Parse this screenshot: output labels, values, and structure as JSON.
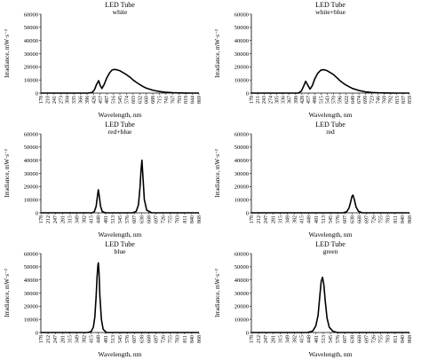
{
  "chart_data": [
    {
      "type": "line",
      "title": "LED Tube",
      "subtitle": "white",
      "xlabel": "Wavelength, nm",
      "ylabel": "Irradiance, mW·s⁻²",
      "ylim": [
        0,
        60000
      ],
      "yticks": [
        0,
        10000,
        20000,
        30000,
        40000,
        50000,
        60000
      ],
      "xticks": [
        "178",
        "210",
        "241",
        "273",
        "304",
        "335",
        "366",
        "396",
        "426",
        "457",
        "487",
        "516",
        "545",
        "574",
        "603",
        "632",
        "660",
        "688",
        "715",
        "741",
        "767",
        "793",
        "819",
        "844",
        "869"
      ],
      "grid": false,
      "legend": "none",
      "x": [
        178,
        400,
        420,
        430,
        440,
        450,
        457,
        465,
        475,
        487,
        500,
        510,
        520,
        530,
        545,
        560,
        574,
        590,
        603,
        615,
        632,
        646,
        660,
        688,
        715,
        741,
        767,
        793,
        819,
        844,
        869
      ],
      "y": [
        0,
        0,
        500,
        2500,
        6500,
        9500,
        6000,
        3500,
        6500,
        11500,
        15500,
        17500,
        18000,
        17800,
        17000,
        15500,
        14000,
        12000,
        10000,
        8500,
        6500,
        5000,
        3800,
        2200,
        1200,
        600,
        300,
        150,
        50,
        0,
        0
      ]
    },
    {
      "type": "line",
      "title": "LED Tube",
      "subtitle": "white+blue",
      "xlabel": "Wavelength, nm",
      "ylabel": "Irradiance, mW·s⁻²",
      "ylim": [
        0,
        60000
      ],
      "yticks": [
        0,
        10000,
        20000,
        30000,
        40000,
        50000,
        60000
      ],
      "xticks": [
        "178",
        "211",
        "243",
        "274",
        "305",
        "336",
        "367",
        "398",
        "428",
        "457",
        "486",
        "515",
        "543",
        "570",
        "596",
        "622",
        "648",
        "674",
        "699",
        "723",
        "746",
        "769",
        "792",
        "815",
        "837",
        "859"
      ],
      "grid": false,
      "legend": "none",
      "x": [
        178,
        410,
        425,
        435,
        445,
        455,
        465,
        475,
        486,
        500,
        515,
        528,
        543,
        557,
        570,
        585,
        596,
        610,
        622,
        648,
        674,
        699,
        723,
        746,
        769,
        792,
        815,
        837,
        859
      ],
      "y": [
        0,
        0,
        1500,
        5000,
        9000,
        6000,
        3000,
        5500,
        10500,
        15000,
        17500,
        17800,
        17000,
        15500,
        14000,
        11500,
        9500,
        7500,
        6000,
        3500,
        2000,
        1000,
        500,
        250,
        100,
        50,
        0,
        0,
        0
      ]
    },
    {
      "type": "line",
      "title": "LED Tube",
      "subtitle": "red+blue",
      "xlabel": "Wavelength, nm",
      "ylabel": "Irradiance, mW·s⁻²",
      "ylim": [
        0,
        60000
      ],
      "yticks": [
        0,
        10000,
        20000,
        30000,
        40000,
        50000,
        60000
      ],
      "xticks": [
        "178",
        "212",
        "247",
        "281",
        "315",
        "349",
        "382",
        "415",
        "448",
        "481",
        "513",
        "545",
        "576",
        "607",
        "638",
        "668",
        "697",
        "726",
        "755",
        "783",
        "811",
        "840",
        "868"
      ],
      "grid": false,
      "legend": "none",
      "x": [
        178,
        420,
        430,
        438,
        444,
        448,
        452,
        458,
        466,
        480,
        600,
        615,
        625,
        632,
        636,
        640,
        644,
        650,
        660,
        680,
        868
      ],
      "y": [
        0,
        0,
        1000,
        5000,
        13000,
        17500,
        13000,
        5000,
        1000,
        0,
        0,
        1000,
        6000,
        20000,
        32000,
        40000,
        28000,
        10000,
        2000,
        0,
        0
      ]
    },
    {
      "type": "line",
      "title": "LED Tube",
      "subtitle": "red",
      "xlabel": "Wavelength, nm",
      "ylabel": "Irradiance, mW·s⁻²",
      "ylim": [
        0,
        60000
      ],
      "yticks": [
        0,
        10000,
        20000,
        30000,
        40000,
        50000,
        60000
      ],
      "xticks": [
        "178",
        "212",
        "247",
        "281",
        "315",
        "349",
        "382",
        "415",
        "448",
        "481",
        "513",
        "545",
        "576",
        "607",
        "638",
        "668",
        "697",
        "726",
        "755",
        "783",
        "811",
        "840",
        "868"
      ],
      "grid": false,
      "legend": "none",
      "x": [
        178,
        600,
        615,
        625,
        632,
        638,
        642,
        648,
        655,
        665,
        680,
        868
      ],
      "y": [
        0,
        0,
        800,
        3500,
        8000,
        12500,
        13500,
        10000,
        4500,
        1200,
        0,
        0
      ]
    },
    {
      "type": "line",
      "title": "LED Tube",
      "subtitle": "blue",
      "xlabel": "Wavelength, nm",
      "ylabel": "Irradiance, mW·s⁻²",
      "ylim": [
        0,
        60000
      ],
      "yticks": [
        0,
        10000,
        20000,
        30000,
        40000,
        50000,
        60000
      ],
      "xticks": [
        "178",
        "212",
        "247",
        "281",
        "315",
        "349",
        "382",
        "415",
        "448",
        "481",
        "513",
        "545",
        "576",
        "607",
        "638",
        "668",
        "697",
        "726",
        "755",
        "783",
        "811",
        "840",
        "868"
      ],
      "grid": false,
      "legend": "none",
      "x": [
        178,
        400,
        415,
        425,
        432,
        438,
        442,
        446,
        448,
        451,
        455,
        462,
        470,
        485,
        868
      ],
      "y": [
        0,
        0,
        800,
        4000,
        12000,
        28000,
        42000,
        51000,
        53000,
        46000,
        28000,
        10000,
        2500,
        0,
        0
      ]
    },
    {
      "type": "line",
      "title": "LED Tube",
      "subtitle": "green",
      "xlabel": "Wavelength, nm",
      "ylabel": "Irradiance, mW·s⁻²",
      "ylim": [
        0,
        60000
      ],
      "yticks": [
        0,
        10000,
        20000,
        30000,
        40000,
        50000,
        60000
      ],
      "xticks": [
        "178",
        "212",
        "247",
        "281",
        "315",
        "349",
        "382",
        "415",
        "448",
        "481",
        "513",
        "545",
        "576",
        "607",
        "638",
        "668",
        "697",
        "726",
        "755",
        "783",
        "811",
        "840",
        "868"
      ],
      "grid": false,
      "legend": "none",
      "x": [
        178,
        440,
        465,
        480,
        490,
        498,
        504,
        510,
        516,
        522,
        530,
        540,
        555,
        575,
        868
      ],
      "y": [
        0,
        0,
        1000,
        5000,
        13000,
        28000,
        39000,
        42000,
        36000,
        24000,
        11000,
        4000,
        1000,
        0,
        0
      ]
    }
  ]
}
